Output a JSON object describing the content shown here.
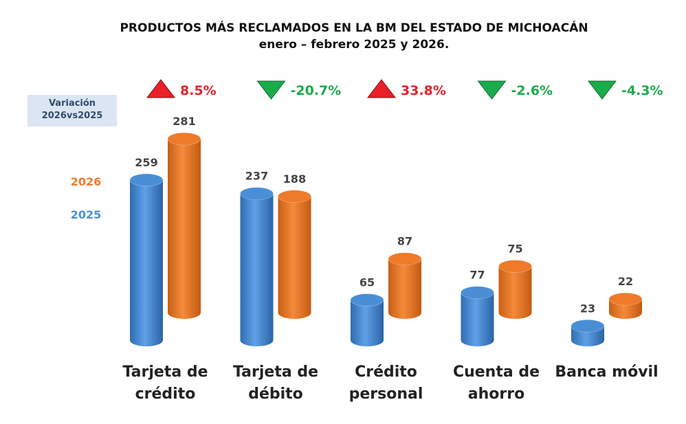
{
  "chart_data": {
    "type": "bar",
    "title": "PRODUCTOS MÁS RECLAMADOS EN LA BM DEL ESTADO DE MICHOACÁN",
    "subtitle": "enero – febrero 2025 y 2026.",
    "categories": [
      "Tarjeta de crédito",
      "Tarjeta de débito",
      "Crédito personal",
      "Cuenta de ahorro",
      "Banca móvil"
    ],
    "series": [
      {
        "name": "2025",
        "color": "#4a8fd6",
        "values": [
          259,
          237,
          65,
          77,
          23
        ]
      },
      {
        "name": "2026",
        "color": "#ee7a2a",
        "values": [
          281,
          188,
          87,
          75,
          22
        ]
      }
    ],
    "variation_label": "Variación 2026vs2025",
    "variation": {
      "values": [
        8.5,
        -20.7,
        33.8,
        -2.6,
        -4.3
      ],
      "value_labels": [
        "8.5%",
        "-20.7%",
        "33.8%",
        "-2.6%",
        "-4.3%"
      ]
    },
    "up_color": "#e8202a",
    "down_color": "#1aab4b"
  }
}
